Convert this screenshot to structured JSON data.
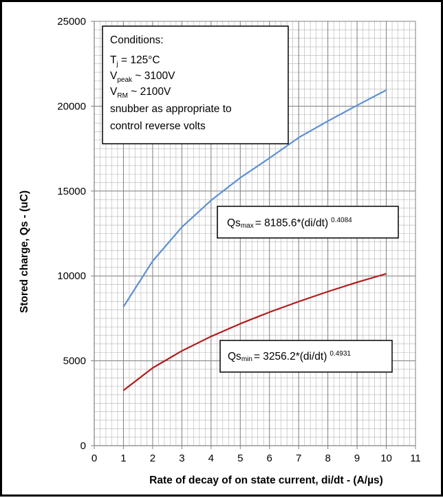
{
  "chart_data": {
    "type": "line",
    "xlabel": "Rate of decay of on state current, di/dt  -  (A/µs)",
    "ylabel": "Stored charge, Qs - (uC)",
    "xlim": [
      0,
      11
    ],
    "ylim": [
      0,
      25000
    ],
    "xticks": [
      0,
      1,
      2,
      3,
      4,
      5,
      6,
      7,
      8,
      9,
      10,
      11
    ],
    "yticks": [
      0,
      5000,
      10000,
      15000,
      20000,
      25000
    ],
    "x_minor_step": 0.2,
    "y_minor_step": 500,
    "grid": true,
    "series": [
      {
        "name": "",
        "color": "#5b8fd4",
        "x": [
          1,
          2,
          3,
          4,
          5,
          6,
          7,
          8,
          9,
          10
        ],
        "values": [
          8186,
          10874,
          12876,
          14447,
          15784,
          16941,
          18149,
          19120,
          20050,
          20950
        ]
      },
      {
        "name": "",
        "color": "#b01a1a",
        "x": [
          1,
          2,
          3,
          4,
          5,
          6,
          7,
          8,
          9,
          10
        ],
        "values": [
          3256,
          4579,
          5584,
          6436,
          7185,
          7866,
          8490,
          9077,
          9627,
          10128
        ]
      }
    ],
    "annotations": {
      "conditions": {
        "title": "Conditions:",
        "tj": {
          "label": "T",
          "sub": "j",
          "text": " = 125°C"
        },
        "vpeak": {
          "label": "V",
          "sub": "peak",
          "text": " ~ 3100V"
        },
        "vrm": {
          "label": "V",
          "sub": "RM",
          "text": " ~ 2100V"
        },
        "snubber_line1": "snubber as appropriate to",
        "snubber_line2": "control reverse volts"
      },
      "qs_max": {
        "prefix": "Qs",
        "sub": "max",
        "formula": "= 8185.6*(di/dt)",
        "exponent": "0.4084"
      },
      "qs_min": {
        "prefix": "Qs",
        "sub": "min",
        "formula": "= 3256.2*(di/dt)",
        "exponent": "0.4931"
      }
    }
  }
}
